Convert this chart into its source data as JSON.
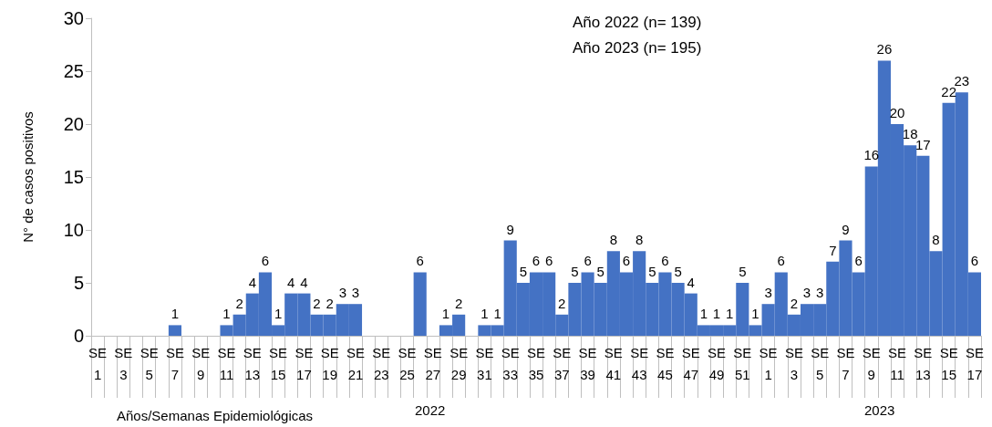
{
  "chart_data": {
    "type": "bar",
    "ylabel": "N° de casos positivos",
    "xlabel": "Años/Semanas Epidemiológicas",
    "categories": [
      "SE 1",
      null,
      "SE 3",
      null,
      "SE 5",
      null,
      "SE 7",
      null,
      "SE 9",
      null,
      "SE 11",
      null,
      "SE 13",
      null,
      "SE 15",
      null,
      "SE 17",
      null,
      "SE 19",
      null,
      "SE 21",
      null,
      "SE 23",
      null,
      "SE 25",
      null,
      "SE 27",
      null,
      "SE 29",
      null,
      "SE 31",
      null,
      "SE 33",
      null,
      "SE 35",
      null,
      "SE 37",
      null,
      "SE 39",
      null,
      "SE 41",
      null,
      "SE 43",
      null,
      "SE 45",
      null,
      "SE 47",
      null,
      "SE 49",
      null,
      "SE 51",
      null,
      "SE 1",
      null,
      "SE 3",
      null,
      "SE 5",
      null,
      "SE 7",
      null,
      "SE 9",
      null,
      "SE 11",
      null,
      "SE 13",
      null,
      "SE 15",
      null,
      "SE 17"
    ],
    "values": [
      0,
      0,
      0,
      0,
      0,
      0,
      1,
      0,
      0,
      0,
      1,
      2,
      4,
      6,
      1,
      4,
      4,
      2,
      2,
      3,
      3,
      0,
      0,
      0,
      0,
      6,
      0,
      1,
      2,
      0,
      1,
      1,
      9,
      5,
      6,
      6,
      2,
      5,
      6,
      5,
      8,
      6,
      8,
      5,
      6,
      5,
      4,
      1,
      1,
      1,
      5,
      1,
      3,
      6,
      2,
      3,
      3,
      7,
      9,
      6,
      16,
      26,
      20,
      18,
      17,
      8,
      22,
      23,
      6
    ],
    "value_labels": [
      null,
      null,
      null,
      null,
      null,
      null,
      "1",
      null,
      null,
      null,
      "1",
      "2",
      "4",
      "6",
      "1",
      "4",
      "4",
      "2",
      "2",
      "3",
      "3",
      null,
      null,
      null,
      null,
      "6",
      null,
      "1",
      "2",
      null,
      "1",
      "1",
      "9",
      "5",
      "6",
      "6",
      "2",
      "5",
      "6",
      "5",
      "8",
      "6",
      "8",
      "5",
      "6",
      "5",
      "4",
      "1",
      "1",
      "1",
      "5",
      "1",
      "3",
      "6",
      "2",
      "3",
      "3",
      "7",
      "9",
      "6",
      "16",
      "26",
      "20",
      "18",
      "17",
      "8",
      "22",
      "23",
      "6"
    ],
    "color": "#4472c4",
    "ylim": [
      0,
      30
    ],
    "yticks": [
      0,
      5,
      10,
      15,
      20,
      25,
      30
    ],
    "grid": false,
    "annotations": [
      "Año 2022 (n= 139)",
      "Año 2023 (n= 195)",
      "2022",
      "2023"
    ]
  }
}
